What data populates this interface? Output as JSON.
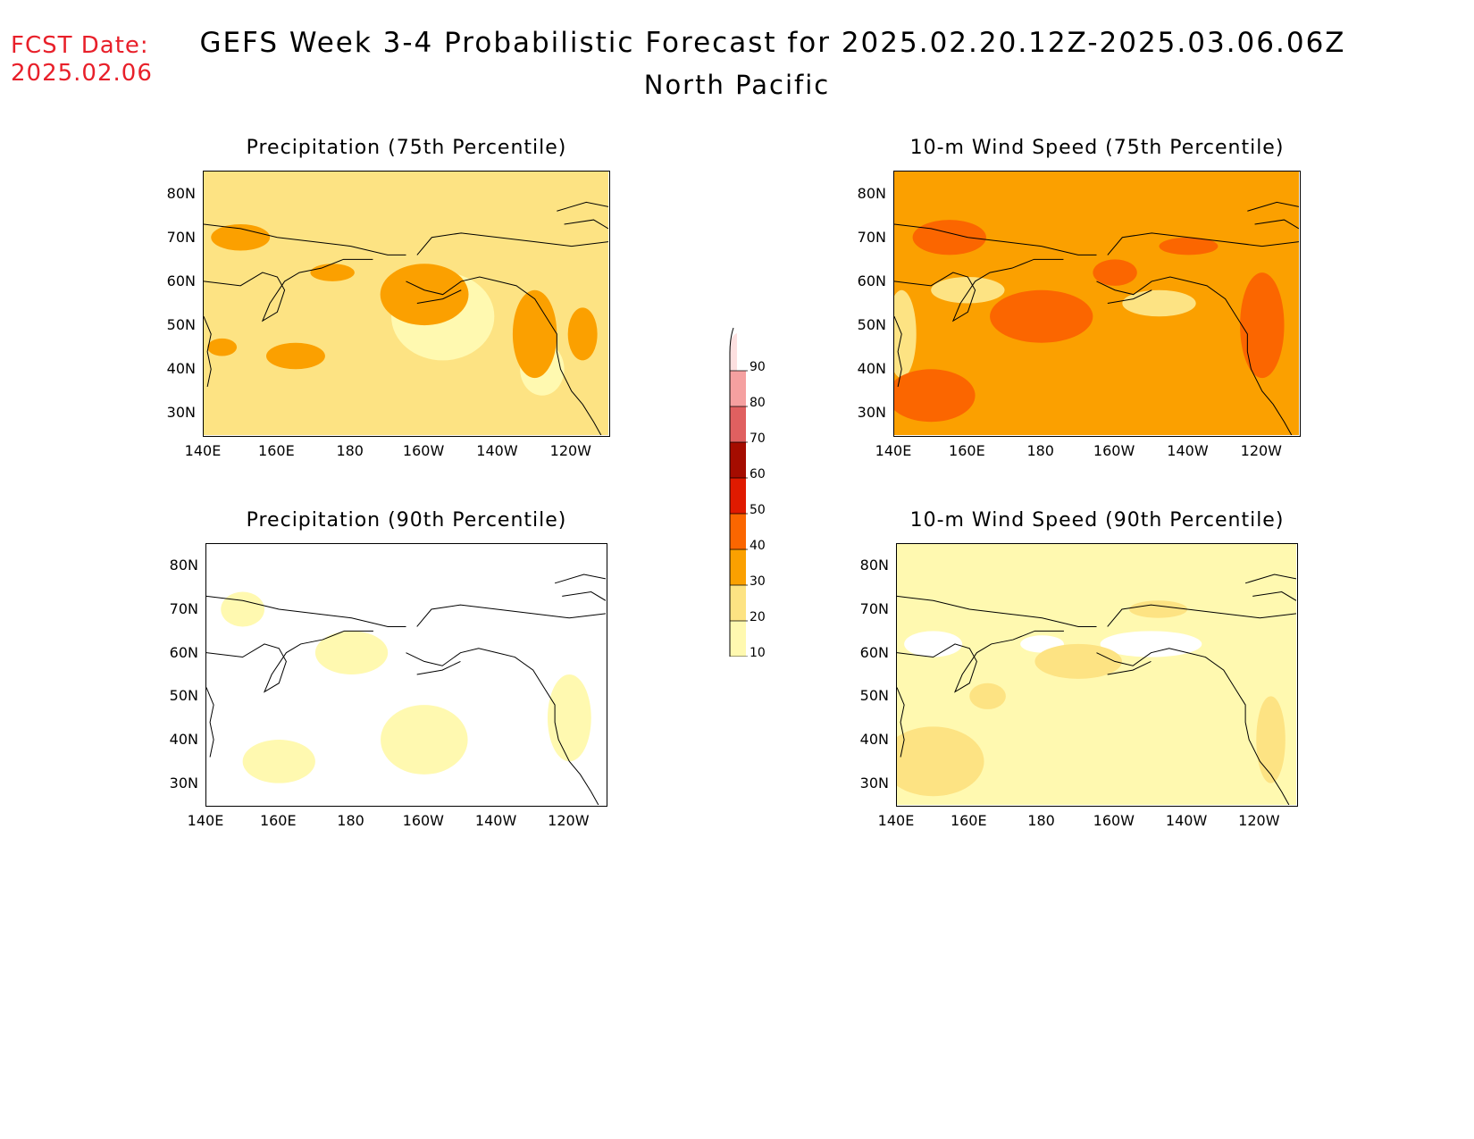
{
  "header": {
    "fcst_label": "FCST Date:",
    "fcst_date": "2025.02.06",
    "title": "GEFS Week 3-4 Probabilistic Forecast for 2025.02.20.12Z-2025.03.06.06Z",
    "subtitle": "North Pacific"
  },
  "axes": {
    "lat_labels": [
      "80N",
      "70N",
      "60N",
      "50N",
      "40N",
      "30N"
    ],
    "lon_labels": [
      "140E",
      "160E",
      "180",
      "160W",
      "140W",
      "120W"
    ]
  },
  "panels": [
    {
      "title": "Precipitation (75th Percentile)",
      "base_level": 20,
      "patch_level": 30
    },
    {
      "title": "10-m Wind Speed (75th Percentile)",
      "base_level": 30,
      "patch_level": 40
    },
    {
      "title": "Precipitation (90th Percentile)",
      "base_level": 0,
      "patch_level": 10
    },
    {
      "title": "10-m Wind Speed (90th Percentile)",
      "base_level": 10,
      "patch_level": 20
    }
  ],
  "colorbar": {
    "levels": [
      "10",
      "20",
      "30",
      "40",
      "50",
      "60",
      "70",
      "80",
      "90"
    ],
    "colors": [
      "#fff9b0",
      "#fde383",
      "#fba000",
      "#fb6600",
      "#e01a00",
      "#a50c00",
      "#e06060",
      "#f5a0a0",
      "#fde0e0"
    ]
  }
}
